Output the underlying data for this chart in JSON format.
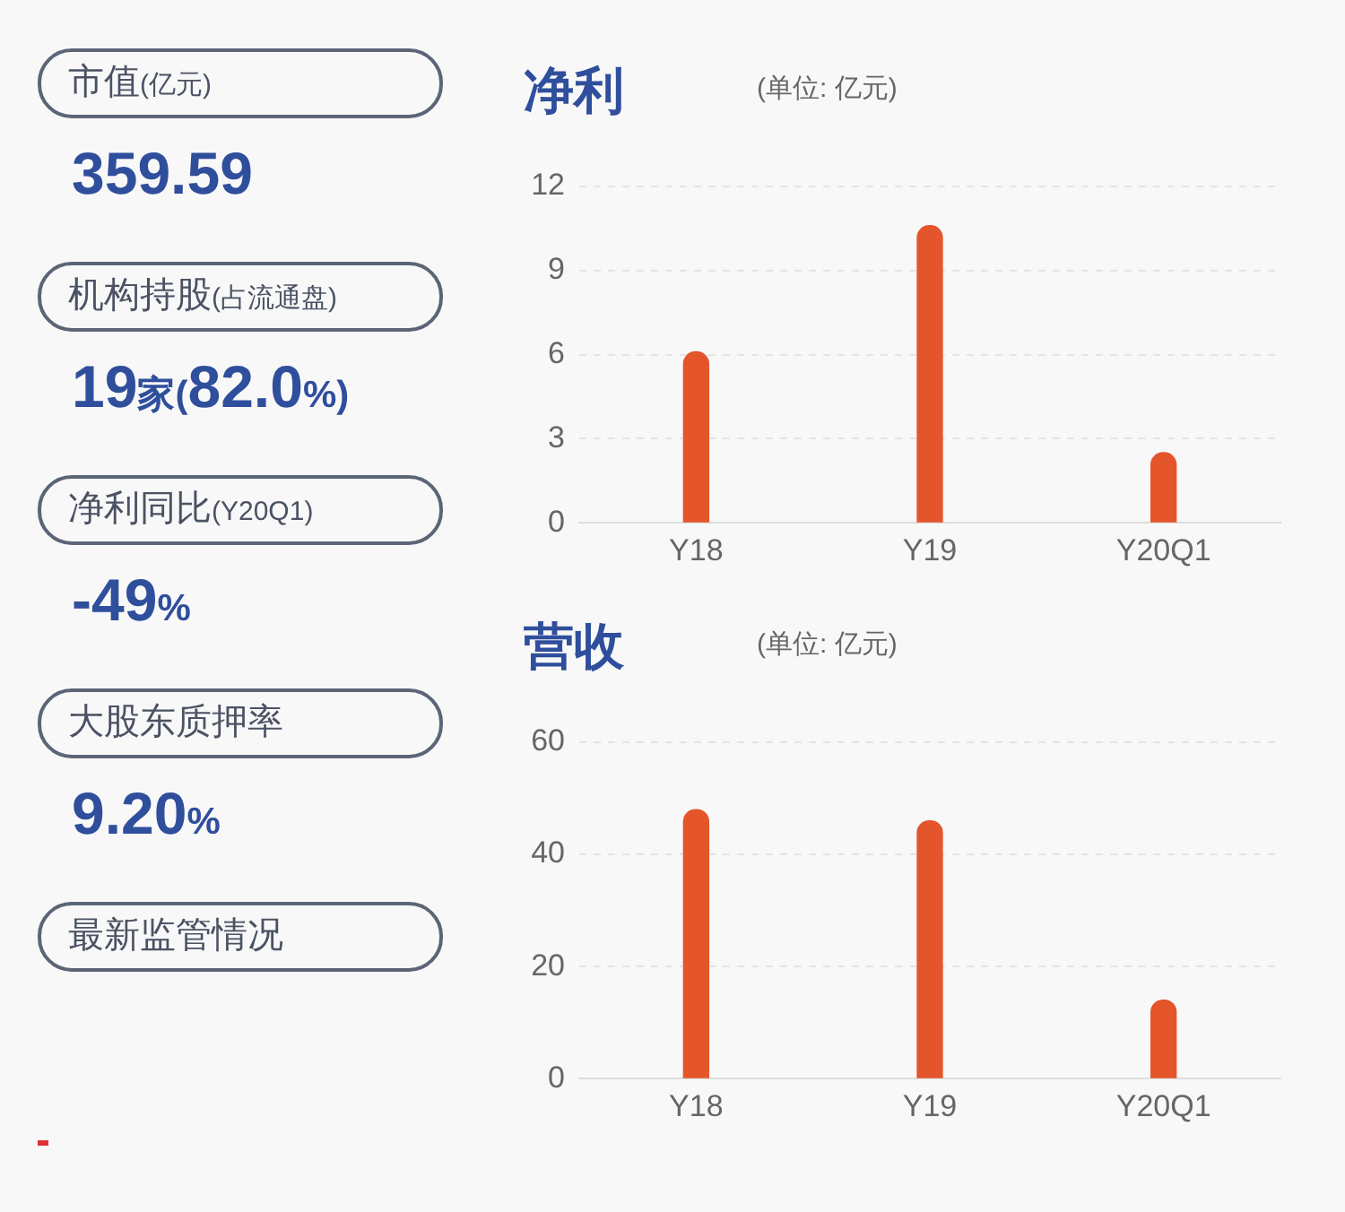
{
  "chart_data": [
    {
      "type": "other",
      "annotations": [
        "市值(亿元)",
        "359.59",
        "机构持股(占流通盘)",
        "19家(82.0%)",
        "净利同比(Y20Q1)",
        "-49%",
        "大股东质押率",
        "9.20%",
        "最新监管情况"
      ]
    },
    {
      "type": "bar",
      "title": "净利",
      "subtitle": "(单位: 亿元)",
      "categories": [
        "Y18",
        "Y19",
        "Y20Q1"
      ],
      "values": [
        6.1,
        10.6,
        2.5
      ],
      "color": "#e4552b",
      "ylim": [
        0,
        12
      ],
      "yticks": [
        0,
        3,
        6,
        9,
        12
      ],
      "grid": "y"
    },
    {
      "type": "bar",
      "title": "营收",
      "subtitle": "(单位: 亿元)",
      "categories": [
        "Y18",
        "Y19",
        "Y20Q1"
      ],
      "values": [
        48,
        46,
        14
      ],
      "color": "#e4552b",
      "ylim": [
        0,
        60
      ],
      "yticks": [
        0,
        20,
        40,
        60
      ],
      "grid": "y"
    }
  ]
}
